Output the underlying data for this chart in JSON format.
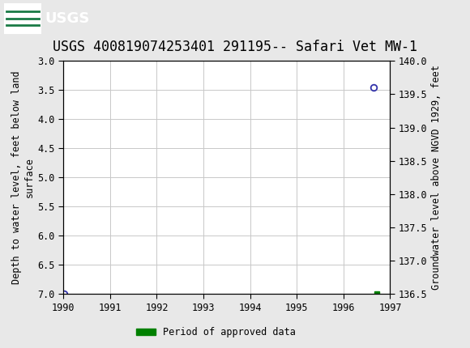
{
  "title": "USGS 400819074253401 291195-- Safari Vet MW-1",
  "left_ylabel": "Depth to water level, feet below land\nsurface",
  "right_ylabel": "Groundwater level above NGVD 1929, feet",
  "ylim_left": [
    3.0,
    7.0
  ],
  "ylim_right": [
    136.5,
    140.0
  ],
  "xlim": [
    1990,
    1997
  ],
  "xticks": [
    1990,
    1991,
    1992,
    1993,
    1994,
    1995,
    1996,
    1997
  ],
  "yticks_left": [
    3.0,
    3.5,
    4.0,
    4.5,
    5.0,
    5.5,
    6.0,
    6.5,
    7.0
  ],
  "yticks_right": [
    136.5,
    137.0,
    137.5,
    138.0,
    138.5,
    139.0,
    139.5,
    140.0
  ],
  "data_points": [
    {
      "x": 1990.02,
      "y_depth": 7.0,
      "type": "unapproved",
      "color": "#3333aa"
    },
    {
      "x": 1996.65,
      "y_depth": 3.45,
      "type": "unapproved",
      "color": "#3333aa"
    },
    {
      "x": 1996.72,
      "y_depth": 7.0,
      "type": "approved",
      "color": "#008000"
    }
  ],
  "header_bg_color": "#1a7a45",
  "plot_bg_color": "#e8e8e8",
  "grid_color": "#c8c8c8",
  "axis_bg_color": "#ffffff",
  "legend_label": "Period of approved data",
  "legend_color": "#008000",
  "title_fontsize": 12,
  "axis_fontsize": 8.5,
  "tick_fontsize": 8.5,
  "font_family": "monospace"
}
